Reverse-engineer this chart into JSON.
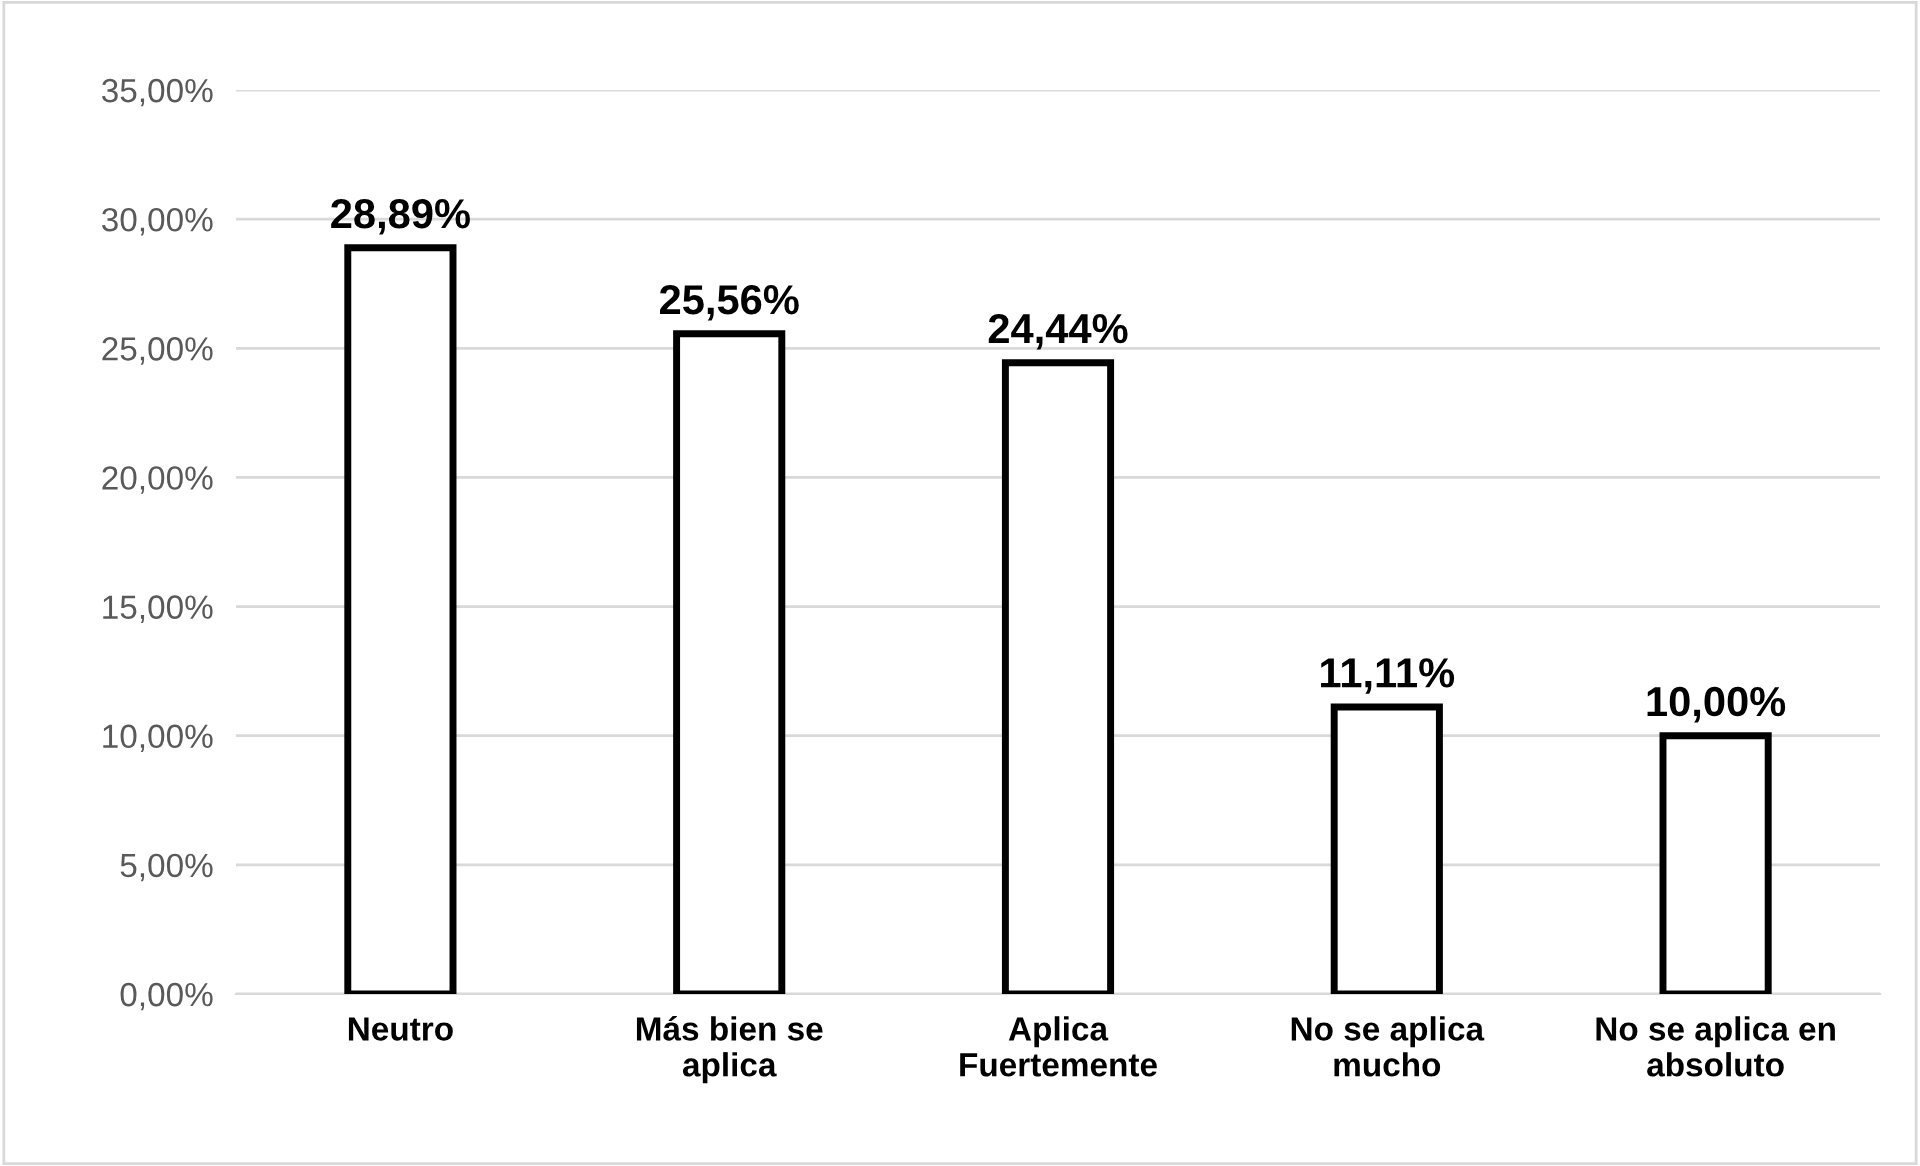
{
  "chart_data": {
    "type": "bar",
    "categories": [
      "Neutro",
      "Más bien se\naplica",
      "Aplica\nFuertemente",
      "No se aplica\nmucho",
      "No se aplica en\nabsoluto"
    ],
    "values": [
      28.89,
      25.56,
      24.44,
      11.11,
      10.0
    ],
    "value_labels": [
      "28,89%",
      "25,56%",
      "24,44%",
      "11,11%",
      "10,00%"
    ],
    "color": "#ffffff",
    "ylim": [
      0,
      35
    ],
    "yticks": [
      {
        "value": 0,
        "label": "0,00%"
      },
      {
        "value": 5,
        "label": "5,00%"
      },
      {
        "value": 10,
        "label": "10,00%"
      },
      {
        "value": 15,
        "label": "15,00%"
      },
      {
        "value": 20,
        "label": "20,00%"
      },
      {
        "value": 25,
        "label": "25,00%"
      },
      {
        "value": 30,
        "label": "30,00%"
      },
      {
        "value": 35,
        "label": "35,00%"
      }
    ],
    "grid": "y"
  }
}
